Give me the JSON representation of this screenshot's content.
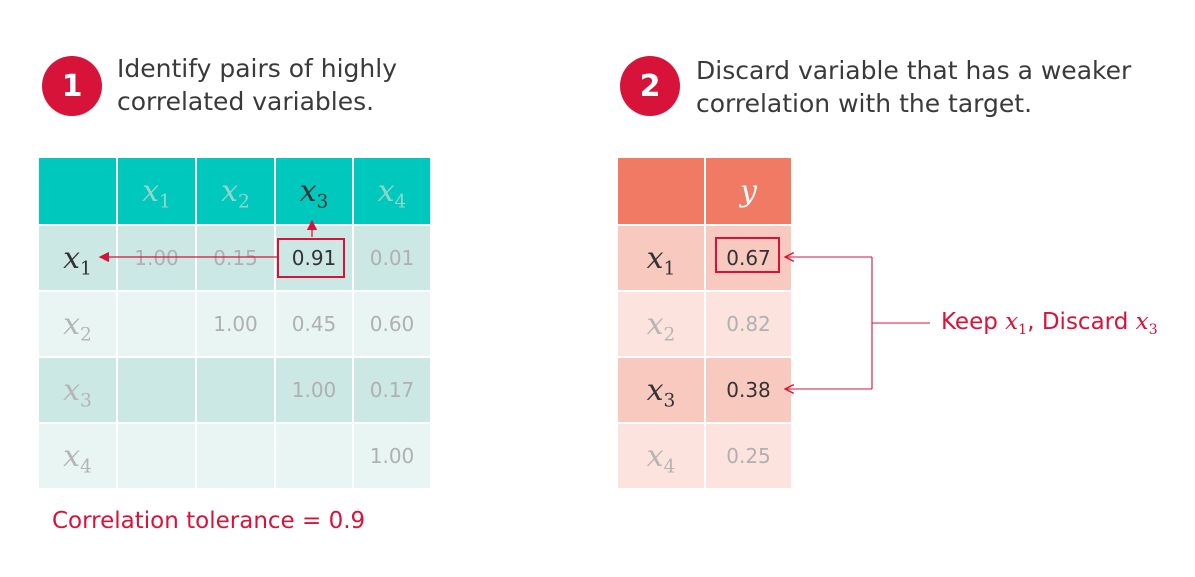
{
  "step1": {
    "number": "1",
    "text_line1": "Identify pairs of highly",
    "text_line2": "correlated variables."
  },
  "step2": {
    "number": "2",
    "text_line1": "Discard variable that has a weaker",
    "text_line2": "correlation with the target."
  },
  "corr_table": {
    "headers": [
      {
        "base": "x",
        "sub": "1"
      },
      {
        "base": "x",
        "sub": "2"
      },
      {
        "base": "x",
        "sub": "3"
      },
      {
        "base": "x",
        "sub": "4"
      }
    ],
    "rows": [
      {
        "label_base": "x",
        "label_sub": "1",
        "cells": [
          "1.00",
          "0.15",
          "0.91",
          "0.01"
        ]
      },
      {
        "label_base": "x",
        "label_sub": "2",
        "cells": [
          "",
          "1.00",
          "0.45",
          "0.60"
        ]
      },
      {
        "label_base": "x",
        "label_sub": "3",
        "cells": [
          "",
          "",
          "1.00",
          "0.17"
        ]
      },
      {
        "label_base": "x",
        "label_sub": "4",
        "cells": [
          "",
          "",
          "",
          "1.00"
        ]
      }
    ],
    "header_color": "#00c8bc",
    "row_color_a": "#cbe8e5",
    "row_color_b": "#e8f5f3"
  },
  "target_table": {
    "header": "y",
    "rows": [
      {
        "label_base": "x",
        "label_sub": "1",
        "value": "0.67"
      },
      {
        "label_base": "x",
        "label_sub": "2",
        "value": "0.82"
      },
      {
        "label_base": "x",
        "label_sub": "3",
        "value": "0.38"
      },
      {
        "label_base": "x",
        "label_sub": "4",
        "value": "0.25"
      }
    ],
    "header_color": "#f07a63",
    "row_color_a": "#f8c9bf",
    "row_color_b": "#fde3de"
  },
  "tolerance_label": "Correlation tolerance = 0.9",
  "result": {
    "keep_word": "Keep ",
    "keep_var_base": "x",
    "keep_var_sub": "1",
    "separator": ", ",
    "discard_word": "Discard ",
    "discard_var_base": "x",
    "discard_var_sub": "3"
  },
  "accent_color": "#d8133a"
}
